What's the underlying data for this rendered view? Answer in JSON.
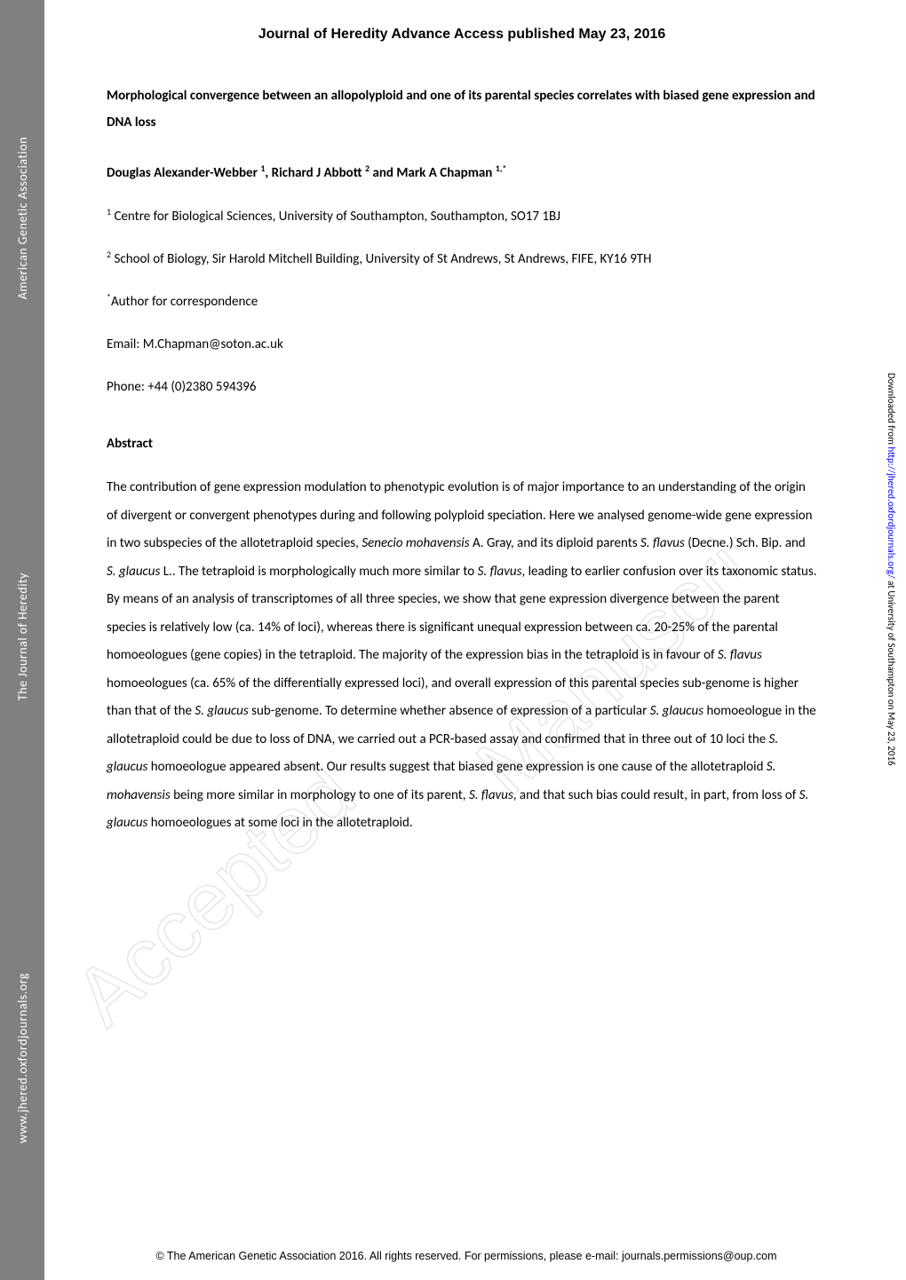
{
  "sidebar_left": {
    "line1": "American Genetic Association",
    "line2": "The Journal of Heredity",
    "line3": "www.jhered.oxfordjournals.org"
  },
  "sidebar_right": {
    "prefix": "Downloaded from ",
    "url": "http://jhered.oxfordjournals.org/",
    "suffix": " at University of Southampton on May 23, 2016"
  },
  "header": {
    "journal": "Journal of Heredity Advance Access published May 23, 2016"
  },
  "article": {
    "title": "Morphological convergence between an allopolyploid and one of its parental species correlates with biased gene expression and DNA loss",
    "authors_html": "Douglas Alexander-Webber <sup>1</sup>, Richard J Abbott <sup>2</sup> and Mark A Chapman <sup>1,*</sup>",
    "affiliations": {
      "a1_sup": "1",
      "a1": " Centre for Biological Sciences, University of Southampton, Southampton, SO17 1BJ",
      "a2_sup": "2",
      "a2": " School of Biology, Sir Harold Mitchell Building, University of St Andrews, St Andrews, FIFE, KY16 9TH",
      "corr_sup": "*",
      "corr": "Author for correspondence",
      "email": "Email: M.Chapman@soton.ac.uk",
      "phone": "Phone: +44 (0)2380 594396"
    },
    "abstract_heading": "Abstract",
    "abstract_parts": {
      "p1": "The contribution of gene expression modulation to phenotypic evolution is of major importance to an understanding of the origin of divergent or convergent phenotypes during and following polyploid speciation. Here we analysed genome-wide gene expression in two subspecies of the allotetraploid species, ",
      "i1": "Senecio mohavensis",
      "p2": " A. Gray, and its diploid parents ",
      "i2": "S. flavus",
      "p3": " (Decne.) Sch. Bip. and ",
      "i3": "S. glaucus",
      "p4": " L.. The tetraploid is morphologically much more similar to ",
      "i4": "S. flavus",
      "p5": ", leading to earlier confusion over its taxonomic status. By means of an analysis of transcriptomes of all three species, we show that gene expression divergence between the parent species is relatively low (ca. 14% of loci), whereas there is significant unequal expression between ca. 20-25% of the parental homoeologues (gene copies) in the tetraploid. The majority of the expression bias in the tetraploid is in favour of ",
      "i5": "S. flavus",
      "p6": " homoeologues (ca. 65% of the differentially expressed loci), and overall expression of this parental species sub-genome is higher than that of the ",
      "i6": "S. glaucus",
      "p7": " sub-genome. To determine whether absence of expression of a particular ",
      "i7": "S. glaucus",
      "p8": " homoeologue in the allotetraploid could be due to loss of DNA, we carried out a PCR-based assay and confirmed that in three out of 10 loci the ",
      "i8": "S. glaucus",
      "p9": " homoeologue appeared absent. Our results suggest that biased gene expression is one cause of the allotetraploid ",
      "i9": "S. mohavensis",
      "p10": " being more similar in morphology to one of its parent, ",
      "i10": "S. flavus",
      "p11": ", and that such bias could result, in part, from loss of ",
      "i11": "S. glaucus",
      "p12": " homoeologues at some loci in the allotetraploid."
    }
  },
  "watermark": {
    "line1": "Accepted",
    "line2": "Manuscript"
  },
  "copyright": "© The American Genetic Association 2016. All rights reserved. For permissions, please e-mail: journals.permissions@oup.com",
  "styling": {
    "background_color": "#ffffff",
    "sidebar_bg": "#808080",
    "sidebar_text_color": "#ffffff",
    "body_font": "Calibri, Arial, sans-serif",
    "body_fontsize": 15,
    "title_fontsize": 15,
    "header_fontsize": 16,
    "line_height": 2.1,
    "watermark_stroke": "#888888",
    "watermark_opacity": 0.25,
    "watermark_fontsize": 92,
    "link_color": "#0000ee"
  }
}
